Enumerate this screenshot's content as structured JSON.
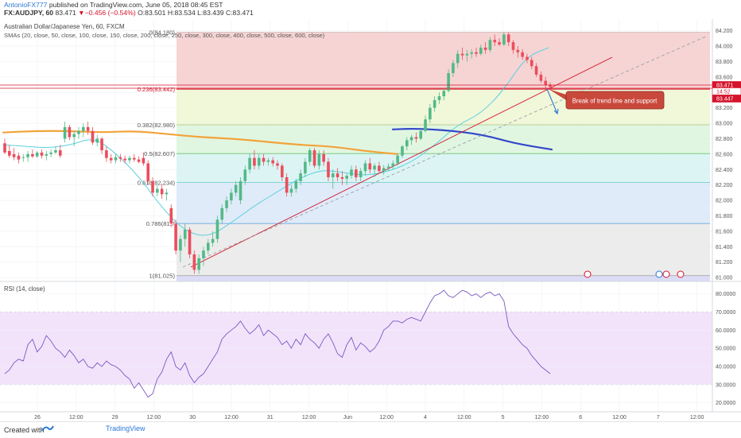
{
  "header": {
    "author": "AntonioFX777",
    "published": "published on TradingView.com, June 05, 2018 08:45 EST",
    "symbol": "FX:AUDJPY, 60",
    "last": "83.471",
    "change": "−0.456 (−0.54%)",
    "ohlc": "O:83.501 H:83.534 L:83.439 C:83.471"
  },
  "footer": {
    "created_with": "Created with",
    "brand": "TradingView",
    "brand_icon": "tradingview-logo-icon"
  },
  "chart_data": [
    {
      "type": "candlestick",
      "title": "Australian Dollar/Japanese Yen, 60, FXCM",
      "subtitle": "SMAs (20, close, 50, close, 100, close, 150, close, 200, close, 250, close, 300, close, 400, close, 500, close, 600, close)",
      "ylim": [
        80.95,
        84.35
      ],
      "yticks": [
        81.0,
        81.2,
        81.4,
        81.6,
        81.8,
        82.0,
        82.2,
        82.4,
        82.6,
        82.8,
        83.0,
        83.2,
        83.4,
        83.6,
        83.8,
        84.0,
        84.2
      ],
      "xticks": [
        "26",
        "12:00",
        "29",
        "12:00",
        "30",
        "12:00",
        "31",
        "12:00",
        "Jun",
        "12:00",
        "4",
        "12:00",
        "5",
        "12:00",
        "6",
        "12:00",
        "7",
        "12:00"
      ],
      "grid": true,
      "price_labels": [
        {
          "text": "83.471",
          "color": "#d4142b"
        },
        {
          "text": "14:52",
          "color": "#d4142b"
        },
        {
          "text": "83.447",
          "color": "#d4142b"
        }
      ],
      "fib_levels": [
        {
          "label": "0(84.180)",
          "value": 84.18
        },
        {
          "label": "0.236(83.442)",
          "value": 83.442
        },
        {
          "label": "0.382(82.980)",
          "value": 82.98
        },
        {
          "label": "0.5(82.607)",
          "value": 82.607
        },
        {
          "label": "0.618(82.234)",
          "value": 82.234
        },
        {
          "label": "0.786(81.7",
          "value": 81.7
        },
        {
          "label": "1(81.025)",
          "value": 81.025
        }
      ],
      "fib_colors": [
        "#f4cccc",
        "#eef6d2",
        "#dcf5dc",
        "#d6f2f2",
        "#d9e8f7",
        "#e9e9e9"
      ],
      "annotation": "Break of trend line and support",
      "candle_colors": {
        "up": "#53b987",
        "down": "#eb4d5c"
      },
      "candles": [
        [
          82.74,
          82.8,
          82.6,
          82.62
        ],
        [
          82.64,
          82.72,
          82.55,
          82.58
        ],
        [
          82.6,
          82.68,
          82.52,
          82.56
        ],
        [
          82.58,
          82.62,
          82.48,
          82.53
        ],
        [
          82.55,
          82.6,
          82.5,
          82.56
        ],
        [
          82.56,
          82.64,
          82.5,
          82.6
        ],
        [
          82.6,
          82.66,
          82.55,
          82.57
        ],
        [
          82.57,
          82.64,
          82.55,
          82.62
        ],
        [
          82.62,
          82.66,
          82.54,
          82.58
        ],
        [
          82.58,
          82.64,
          82.52,
          82.6
        ],
        [
          82.6,
          82.66,
          82.56,
          82.62
        ],
        [
          82.62,
          82.7,
          82.6,
          82.65
        ],
        [
          82.65,
          82.72,
          82.55,
          82.58
        ],
        [
          82.8,
          83.02,
          82.75,
          82.95
        ],
        [
          82.95,
          82.98,
          82.78,
          82.82
        ],
        [
          82.82,
          82.9,
          82.7,
          82.86
        ],
        [
          82.86,
          82.95,
          82.8,
          82.9
        ],
        [
          82.9,
          83.0,
          82.82,
          82.95
        ],
        [
          82.95,
          83.02,
          82.85,
          82.9
        ],
        [
          82.9,
          82.95,
          82.72,
          82.75
        ],
        [
          82.75,
          82.85,
          82.7,
          82.8
        ],
        [
          82.8,
          82.82,
          82.6,
          82.65
        ],
        [
          82.65,
          82.7,
          82.5,
          82.55
        ],
        [
          82.55,
          82.6,
          82.48,
          82.52
        ],
        [
          82.52,
          82.6,
          82.48,
          82.56
        ],
        [
          82.56,
          82.6,
          82.5,
          82.54
        ],
        [
          82.54,
          82.58,
          82.48,
          82.52
        ],
        [
          82.52,
          82.58,
          82.48,
          82.55
        ],
        [
          82.55,
          82.6,
          82.5,
          82.53
        ],
        [
          82.53,
          82.57,
          82.48,
          82.5
        ],
        [
          82.55,
          82.62,
          82.45,
          82.48
        ],
        [
          82.48,
          82.52,
          82.2,
          82.25
        ],
        [
          82.25,
          82.3,
          82.05,
          82.1
        ],
        [
          82.1,
          82.2,
          82.05,
          82.15
        ],
        [
          82.15,
          82.22,
          82.02,
          82.08
        ],
        [
          82.08,
          82.15,
          82.0,
          82.1
        ],
        [
          81.9,
          81.95,
          81.65,
          81.7
        ],
        [
          81.7,
          81.75,
          81.3,
          81.35
        ],
        [
          81.35,
          81.55,
          81.2,
          81.5
        ],
        [
          81.5,
          81.7,
          81.4,
          81.62
        ],
        [
          81.62,
          81.65,
          81.25,
          81.3
        ],
        [
          81.3,
          81.35,
          81.05,
          81.1
        ],
        [
          81.1,
          81.3,
          81.05,
          81.25
        ],
        [
          81.25,
          81.4,
          81.15,
          81.35
        ],
        [
          81.35,
          81.5,
          81.3,
          81.45
        ],
        [
          81.45,
          81.6,
          81.4,
          81.5
        ],
        [
          81.5,
          81.8,
          81.45,
          81.75
        ],
        [
          81.75,
          81.95,
          81.7,
          81.9
        ],
        [
          81.9,
          82.05,
          81.85,
          82.0
        ],
        [
          82.0,
          82.15,
          81.95,
          82.1
        ],
        [
          82.1,
          82.25,
          82.05,
          82.2
        ],
        [
          82.0,
          82.3,
          81.95,
          82.25
        ],
        [
          82.25,
          82.45,
          82.2,
          82.4
        ],
        [
          82.4,
          82.6,
          82.35,
          82.55
        ],
        [
          82.55,
          82.65,
          82.4,
          82.45
        ],
        [
          82.45,
          82.6,
          82.4,
          82.55
        ],
        [
          82.55,
          82.6,
          82.45,
          82.5
        ],
        [
          82.5,
          82.55,
          82.45,
          82.52
        ],
        [
          82.52,
          82.56,
          82.44,
          82.48
        ],
        [
          82.48,
          82.52,
          82.4,
          82.45
        ],
        [
          82.45,
          82.48,
          82.25,
          82.3
        ],
        [
          82.3,
          82.35,
          82.05,
          82.1
        ],
        [
          82.1,
          82.2,
          82.05,
          82.15
        ],
        [
          82.15,
          82.28,
          82.1,
          82.25
        ],
        [
          82.25,
          82.4,
          82.2,
          82.35
        ],
        [
          82.35,
          82.55,
          82.3,
          82.5
        ],
        [
          82.5,
          82.68,
          82.45,
          82.65
        ],
        [
          82.65,
          82.68,
          82.42,
          82.45
        ],
        [
          82.45,
          82.65,
          82.4,
          82.6
        ],
        [
          82.6,
          82.65,
          82.45,
          82.5
        ],
        [
          82.5,
          82.55,
          82.25,
          82.3
        ],
        [
          82.3,
          82.4,
          82.15,
          82.35
        ],
        [
          82.35,
          82.42,
          82.25,
          82.3
        ],
        [
          82.3,
          82.38,
          82.2,
          82.28
        ],
        [
          82.28,
          82.35,
          82.2,
          82.32
        ],
        [
          82.32,
          82.45,
          82.28,
          82.4
        ],
        [
          82.4,
          82.45,
          82.25,
          82.3
        ],
        [
          82.3,
          82.42,
          82.25,
          82.38
        ],
        [
          82.38,
          82.52,
          82.32,
          82.48
        ],
        [
          82.48,
          82.55,
          82.35,
          82.4
        ],
        [
          82.4,
          82.48,
          82.3,
          82.45
        ],
        [
          82.45,
          82.5,
          82.35,
          82.38
        ],
        [
          82.38,
          82.46,
          82.33,
          82.42
        ],
        [
          82.42,
          82.48,
          82.38,
          82.44
        ],
        [
          82.44,
          82.52,
          82.4,
          82.48
        ],
        [
          82.48,
          82.6,
          82.45,
          82.58
        ],
        [
          82.58,
          82.72,
          82.55,
          82.7
        ],
        [
          82.7,
          82.82,
          82.65,
          82.78
        ],
        [
          82.78,
          82.85,
          82.72,
          82.82
        ],
        [
          82.82,
          82.88,
          82.75,
          82.8
        ],
        [
          82.8,
          82.92,
          82.78,
          82.9
        ],
        [
          82.9,
          83.1,
          82.88,
          83.05
        ],
        [
          83.05,
          83.25,
          83.0,
          83.2
        ],
        [
          83.2,
          83.35,
          83.15,
          83.3
        ],
        [
          83.3,
          83.4,
          83.25,
          83.35
        ],
        [
          83.35,
          83.45,
          83.3,
          83.42
        ],
        [
          83.42,
          83.7,
          83.4,
          83.65
        ],
        [
          83.65,
          83.82,
          83.6,
          83.78
        ],
        [
          83.78,
          83.95,
          83.72,
          83.9
        ],
        [
          83.9,
          83.98,
          83.82,
          83.88
        ],
        [
          83.88,
          83.95,
          83.8,
          83.9
        ],
        [
          83.9,
          83.96,
          83.84,
          83.92
        ],
        [
          83.92,
          83.98,
          83.86,
          83.9
        ],
        [
          83.9,
          84.02,
          83.88,
          83.98
        ],
        [
          83.98,
          84.05,
          83.9,
          83.95
        ],
        [
          83.95,
          84.12,
          83.92,
          84.08
        ],
        [
          84.08,
          84.15,
          84.0,
          84.05
        ],
        [
          84.05,
          84.1,
          84.0,
          84.02
        ],
        [
          84.02,
          84.18,
          84.0,
          84.15
        ],
        [
          84.15,
          84.18,
          84.0,
          84.05
        ],
        [
          84.05,
          84.08,
          83.9,
          83.95
        ],
        [
          83.95,
          84.0,
          83.85,
          83.92
        ],
        [
          83.92,
          83.96,
          83.82,
          83.86
        ],
        [
          83.86,
          83.9,
          83.78,
          83.82
        ],
        [
          83.82,
          83.86,
          83.7,
          83.74
        ],
        [
          83.74,
          83.78,
          83.6,
          83.63
        ],
        [
          83.63,
          83.67,
          83.52,
          83.55
        ],
        [
          83.55,
          83.6,
          83.45,
          83.5
        ],
        [
          83.5,
          83.53,
          83.44,
          83.47
        ]
      ],
      "sma_20": [
        [
          82.72,
          82.8
        ],
        [
          82.7,
          82.75
        ],
        [
          82.68,
          82.72
        ],
        [
          82.72,
          82.7
        ],
        [
          82.82,
          82.68
        ],
        [
          82.6,
          82.62
        ],
        [
          82.3,
          82.45
        ],
        [
          81.9,
          82.3
        ],
        [
          81.6,
          82.15
        ],
        [
          81.52,
          82.08
        ],
        [
          81.7,
          82.02
        ],
        [
          81.92,
          82.0
        ],
        [
          82.1,
          82.0
        ],
        [
          82.28,
          82.02
        ],
        [
          82.4,
          82.06
        ],
        [
          82.36,
          82.12
        ],
        [
          82.32,
          82.18
        ],
        [
          82.38,
          82.25
        ],
        [
          82.5,
          82.35
        ],
        [
          82.72,
          82.52
        ],
        [
          82.98,
          82.72
        ],
        [
          83.12,
          82.94
        ],
        [
          83.42,
          83.2
        ],
        [
          83.86,
          83.45
        ],
        [
          83.98,
          83.52
        ]
      ],
      "sma_100": [
        [
          82.88,
          82.82
        ],
        [
          82.9,
          82.84
        ],
        [
          82.9,
          82.86
        ],
        [
          82.88,
          82.86
        ],
        [
          82.9,
          82.86
        ],
        [
          82.86,
          82.85
        ],
        [
          82.82,
          82.84
        ],
        [
          82.8,
          82.82
        ],
        [
          82.76,
          82.8
        ],
        [
          82.72,
          82.78
        ],
        [
          82.7,
          82.76
        ],
        [
          82.64,
          82.72
        ],
        [
          82.6,
          82.66
        ]
      ],
      "sma_200": [
        [
          82.92,
          82.6
        ],
        [
          82.93,
          82.58
        ],
        [
          82.92,
          82.57
        ],
        [
          82.9,
          82.55
        ],
        [
          82.87,
          82.56
        ],
        [
          82.82,
          82.58
        ],
        [
          82.75,
          82.62
        ],
        [
          82.7,
          82.64
        ],
        [
          82.66,
          82.66
        ]
      ]
    },
    {
      "type": "line",
      "title": "RSI (14, close)",
      "ylim": [
        15,
        86
      ],
      "yticks": [
        20,
        30,
        40,
        50,
        60,
        70,
        80
      ],
      "band": [
        30,
        70
      ],
      "values": [
        36,
        38,
        42,
        44,
        43,
        52,
        55,
        48,
        51,
        57,
        54,
        50,
        48,
        45,
        49,
        46,
        42,
        44,
        40,
        39,
        42,
        40,
        43,
        41,
        40,
        38,
        35,
        33,
        28,
        31,
        27,
        23,
        25,
        33,
        37,
        44,
        48,
        40,
        38,
        42,
        35,
        31,
        34,
        36,
        40,
        44,
        48,
        55,
        58,
        60,
        62,
        65,
        61,
        58,
        60,
        63,
        57,
        60,
        58,
        56,
        52,
        54,
        50,
        55,
        52,
        58,
        55,
        53,
        50,
        55,
        58,
        53,
        47,
        45,
        52,
        56,
        49,
        53,
        51,
        48,
        50,
        54,
        60,
        62,
        65,
        65,
        64,
        66,
        67,
        66,
        65,
        70,
        75,
        79,
        80,
        82,
        79,
        78,
        80,
        82,
        81,
        79,
        80,
        78,
        80,
        81,
        79,
        80,
        76,
        62,
        58,
        55,
        52,
        50,
        46,
        43,
        40,
        38,
        36
      ],
      "line_color": "#7e57c2"
    }
  ]
}
